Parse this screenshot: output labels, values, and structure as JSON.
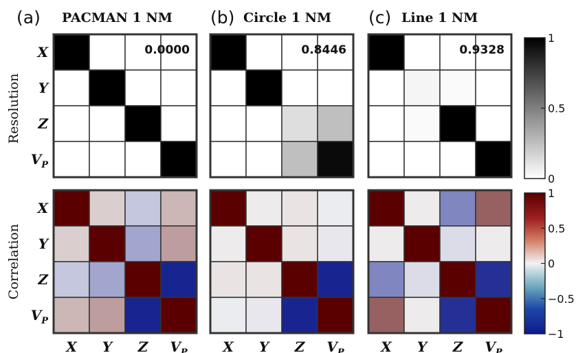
{
  "panels": [
    {
      "letter": "(a)",
      "title": "PACMAN 1 NM",
      "value": "0.0000"
    },
    {
      "letter": "(b)",
      "title": "Circle 1 NM",
      "value": "0.8446"
    },
    {
      "letter": "(c)",
      "title": "Line 1 NM",
      "value": "0.9328"
    }
  ],
  "row_labels": {
    "top": "Resolution",
    "bottom": "Correlation"
  },
  "axis_labels": [
    {
      "main": "X",
      "sub": ""
    },
    {
      "main": "Y",
      "sub": ""
    },
    {
      "main": "Z",
      "sub": ""
    },
    {
      "main": "V",
      "sub": "P"
    }
  ],
  "colorbars": {
    "resolution": {
      "ticks": [
        "1",
        "0.5",
        "0"
      ],
      "values": [
        1,
        0.5,
        0
      ]
    },
    "correlation": {
      "ticks": [
        "1",
        "0.5",
        "0",
        "−0.5",
        "−1"
      ],
      "values": [
        1,
        0.5,
        0,
        -0.5,
        -1
      ]
    }
  },
  "colors": {
    "neg": "#0d1a8c",
    "mid": "#f2f2f2",
    "pos": "#5a0000",
    "border": "#333333"
  },
  "chart_data": [
    {
      "type": "heatmap",
      "panel": "(a)",
      "metric": "resolution",
      "rows": [
        "X",
        "Y",
        "Z",
        "VP"
      ],
      "cols": [
        "X",
        "Y",
        "Z",
        "VP"
      ],
      "range": [
        0,
        1
      ],
      "values": [
        [
          1,
          0,
          0,
          0
        ],
        [
          0,
          1,
          0,
          0
        ],
        [
          0,
          0,
          1,
          0
        ],
        [
          0,
          0,
          0,
          1
        ]
      ]
    },
    {
      "type": "heatmap",
      "panel": "(b)",
      "metric": "resolution",
      "rows": [
        "X",
        "Y",
        "Z",
        "VP"
      ],
      "cols": [
        "X",
        "Y",
        "Z",
        "VP"
      ],
      "range": [
        0,
        1
      ],
      "values": [
        [
          1,
          0,
          0,
          0
        ],
        [
          0,
          1,
          0,
          0
        ],
        [
          0,
          0,
          0.13,
          0.25
        ],
        [
          0,
          0,
          0.25,
          0.96
        ]
      ]
    },
    {
      "type": "heatmap",
      "panel": "(c)",
      "metric": "resolution",
      "rows": [
        "X",
        "Y",
        "Z",
        "VP"
      ],
      "cols": [
        "X",
        "Y",
        "Z",
        "VP"
      ],
      "range": [
        0,
        1
      ],
      "values": [
        [
          1,
          0,
          0,
          0
        ],
        [
          0,
          0.04,
          0.02,
          0
        ],
        [
          0,
          0.02,
          1,
          0
        ],
        [
          0,
          0,
          0,
          1
        ]
      ]
    },
    {
      "type": "heatmap",
      "panel": "(a)",
      "metric": "correlation",
      "rows": [
        "X",
        "Y",
        "Z",
        "VP"
      ],
      "cols": [
        "X",
        "Y",
        "Z",
        "VP"
      ],
      "range": [
        -1,
        1
      ],
      "values": [
        [
          1,
          0.15,
          -0.2,
          0.25
        ],
        [
          0.15,
          1,
          -0.35,
          0.35
        ],
        [
          -0.2,
          -0.35,
          1,
          -0.95
        ],
        [
          0.25,
          0.35,
          -0.95,
          1
        ]
      ]
    },
    {
      "type": "heatmap",
      "panel": "(b)",
      "metric": "correlation",
      "rows": [
        "X",
        "Y",
        "Z",
        "VP"
      ],
      "cols": [
        "X",
        "Y",
        "Z",
        "VP"
      ],
      "range": [
        -1,
        1
      ],
      "values": [
        [
          1,
          0.03,
          0.06,
          -0.03
        ],
        [
          0.03,
          1,
          0.06,
          -0.05
        ],
        [
          0.06,
          0.06,
          1,
          -0.95
        ],
        [
          -0.03,
          -0.05,
          -0.95,
          1
        ]
      ]
    },
    {
      "type": "heatmap",
      "panel": "(c)",
      "metric": "correlation",
      "rows": [
        "X",
        "Y",
        "Z",
        "VP"
      ],
      "cols": [
        "X",
        "Y",
        "Z",
        "VP"
      ],
      "range": [
        -1,
        1
      ],
      "values": [
        [
          1,
          0.03,
          -0.5,
          0.6
        ],
        [
          0.03,
          1,
          -0.1,
          0.03
        ],
        [
          -0.5,
          -0.1,
          1,
          -0.9
        ],
        [
          0.6,
          0.03,
          -0.9,
          1
        ]
      ]
    }
  ]
}
